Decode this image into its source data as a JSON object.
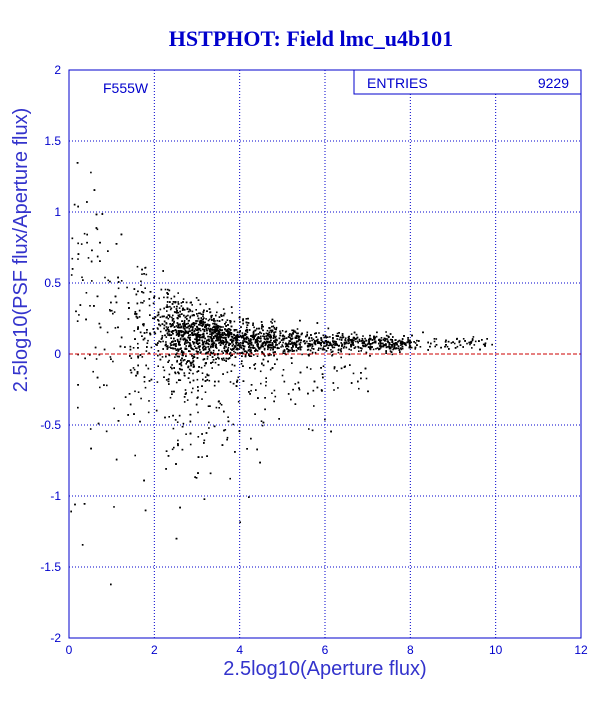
{
  "chart_data": {
    "type": "scatter",
    "title": "HSTPHOT: Field lmc_u4b101",
    "xlabel": "2.5log10(Aperture flux)",
    "ylabel": "2.5log10(PSF flux/Aperture flux)",
    "xlim": [
      0,
      12
    ],
    "ylim": [
      -2,
      2
    ],
    "xticks": [
      0,
      2,
      4,
      6,
      8,
      10,
      12
    ],
    "yticks": [
      -2,
      -1.5,
      -1,
      -0.5,
      0,
      0.5,
      1,
      1.5,
      2
    ],
    "grid": true,
    "annotation": "F555W",
    "stats": {
      "label": "ENTRIES",
      "value": "9229"
    },
    "reference_line": {
      "y": 0,
      "color": "#cc0000"
    },
    "colors": {
      "axes": "#0000cc",
      "points": "#000000",
      "reference": "#cc0000"
    }
  }
}
